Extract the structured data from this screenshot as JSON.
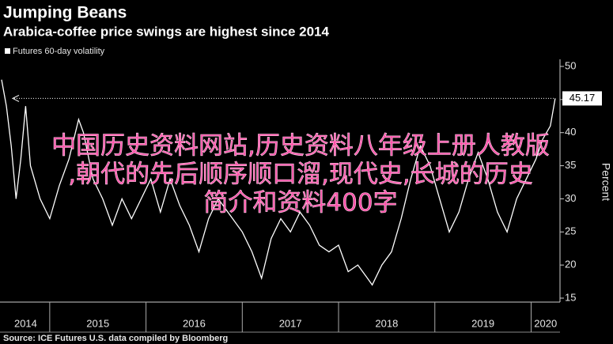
{
  "chart_data": {
    "type": "line",
    "title": "Jumping Beans",
    "subtitle": "Arabica-coffee price swings are highest since 2014",
    "y_label": "Percent",
    "source": "Source: ICE Futures U.S. data compiled by Bloomberg",
    "overlay_text": [
      "中国历史资料网站,历史资料八年级上册人教版",
      ",朝代的先后顺序顺口溜,现代史,长城的历史",
      "简介和资料400字"
    ],
    "last_value_label": "45.17",
    "x": [
      2014.5,
      2014.55,
      2014.6,
      2014.65,
      2014.7,
      2014.75,
      2014.8,
      2014.9,
      2015.0,
      2015.1,
      2015.2,
      2015.3,
      2015.35,
      2015.45,
      2015.55,
      2015.65,
      2015.75,
      2015.85,
      2015.95,
      2016.05,
      2016.15,
      2016.25,
      2016.35,
      2016.45,
      2016.55,
      2016.65,
      2016.75,
      2016.85,
      2017.0,
      2017.1,
      2017.2,
      2017.3,
      2017.4,
      2017.5,
      2017.6,
      2017.7,
      2017.8,
      2017.9,
      2018.0,
      2018.1,
      2018.2,
      2018.3,
      2018.35,
      2018.45,
      2018.55,
      2018.65,
      2018.75,
      2018.85,
      2018.95,
      2019.05,
      2019.15,
      2019.25,
      2019.35,
      2019.45,
      2019.55,
      2019.65,
      2019.75,
      2019.85,
      2019.95,
      2020.05,
      2020.12,
      2020.2,
      2020.25
    ],
    "series": [
      {
        "name": "Futures 60-day volatility",
        "color": "#ffffff",
        "values": [
          48,
          44,
          38,
          30,
          36,
          44,
          35,
          30,
          27,
          32,
          36,
          42,
          40,
          33,
          30,
          26,
          30,
          27,
          30,
          33,
          28,
          33,
          29,
          26,
          22,
          27,
          30,
          28,
          25,
          22,
          18,
          24,
          27,
          25,
          28,
          26,
          23,
          22,
          23,
          19,
          20,
          18,
          17,
          20,
          22,
          27,
          33,
          38,
          35,
          30,
          25,
          28,
          33,
          37,
          33,
          28,
          25,
          30,
          33,
          36,
          39,
          41,
          45.17
        ]
      }
    ],
    "xlim": [
      2014.5,
      2020.3
    ],
    "xticks": [
      {
        "value": 2014.75,
        "label": "2014"
      },
      {
        "value": 2015.5,
        "label": "2015"
      },
      {
        "value": 2016.5,
        "label": "2016"
      },
      {
        "value": 2017.5,
        "label": "2017"
      },
      {
        "value": 2018.5,
        "label": "2018"
      },
      {
        "value": 2019.5,
        "label": "2019"
      },
      {
        "value": 2020.15,
        "label": "2020"
      }
    ],
    "ylim": [
      15,
      50
    ],
    "yticks": [
      15,
      20,
      25,
      30,
      35,
      40,
      45,
      50
    ],
    "grid": false
  }
}
